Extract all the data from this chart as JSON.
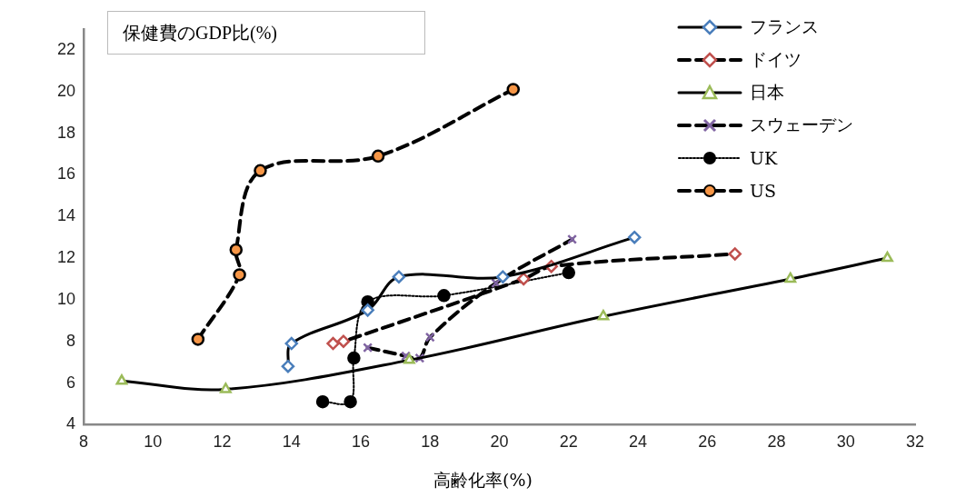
{
  "chart_data": {
    "type": "line",
    "ylabel": "保健費のGDP比(%)",
    "xlabel": "高齢化率(%)",
    "xlim": [
      8,
      32
    ],
    "xticks": [
      8,
      10,
      12,
      14,
      16,
      18,
      20,
      22,
      24,
      26,
      28,
      30,
      32
    ],
    "ylim": [
      4,
      23
    ],
    "yticks": [
      4,
      6,
      8,
      10,
      12,
      14,
      16,
      18,
      20,
      22
    ],
    "grid": false,
    "legend": "top right",
    "series": [
      {
        "name": "フランス",
        "color": "#4a7ebb",
        "marker": "diamond",
        "line_style": "solid",
        "x": [
          13.9,
          14.0,
          16.2,
          17.1,
          20.1,
          23.9
        ],
        "values": [
          6.8,
          7.9,
          9.5,
          11.1,
          11.1,
          13.0
        ]
      },
      {
        "name": "ドイツ",
        "color": "#c0504d",
        "marker": "diamond",
        "line_style": "dashed",
        "x": [
          15.2,
          15.5,
          20.7,
          21.5,
          26.8
        ],
        "values": [
          7.9,
          8.0,
          11.0,
          11.6,
          12.2
        ]
      },
      {
        "name": "日本",
        "color": "#9bbb59",
        "marker": "triangle",
        "line_style": "solid",
        "x": [
          9.1,
          12.1,
          17.4,
          23.0,
          28.4,
          31.2
        ],
        "values": [
          6.1,
          5.7,
          7.1,
          9.2,
          11.0,
          12.0
        ]
      },
      {
        "name": "スウェーデン",
        "color": "#8064a2",
        "marker": "cross",
        "line_style": "dashed",
        "x": [
          16.2,
          17.3,
          17.7,
          18.0,
          19.9,
          22.1
        ],
        "values": [
          7.7,
          7.3,
          7.2,
          8.2,
          10.8,
          12.9
        ]
      },
      {
        "name": "UK",
        "color": "#000000",
        "marker": "circle",
        "line_style": "dotted",
        "x": [
          14.9,
          15.7,
          15.8,
          16.2,
          18.4,
          22.0
        ],
        "values": [
          5.1,
          5.1,
          7.2,
          9.9,
          10.2,
          11.3
        ]
      },
      {
        "name": "US",
        "color": "#f79646",
        "marker": "circle",
        "line_style": "dashed",
        "x": [
          11.3,
          12.5,
          12.4,
          13.1,
          16.5,
          20.4
        ],
        "values": [
          8.1,
          11.2,
          12.4,
          16.2,
          16.9,
          20.1
        ]
      }
    ]
  }
}
